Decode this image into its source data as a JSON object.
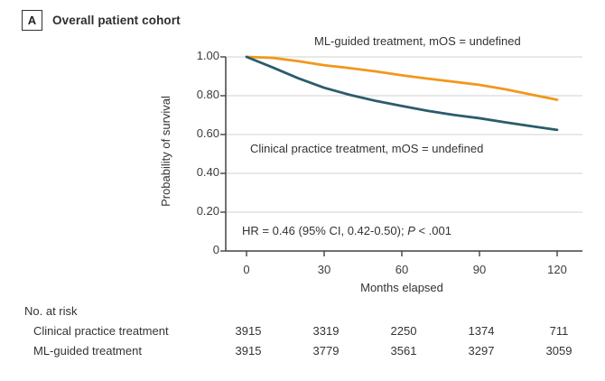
{
  "panel": {
    "label": "A",
    "title": "Overall patient cohort"
  },
  "chart_data": {
    "type": "line",
    "title": "Overall patient cohort",
    "xlabel": "Months elapsed",
    "ylabel": "Probability of survival",
    "xlim": [
      0,
      120
    ],
    "ylim": [
      0,
      1.0
    ],
    "grid": "horizontal",
    "legend_position": "labels-on-plot",
    "x_ticks": [
      {
        "label": "0",
        "value": 0
      },
      {
        "label": "30",
        "value": 30
      },
      {
        "label": "60",
        "value": 60
      },
      {
        "label": "90",
        "value": 90
      },
      {
        "label": "120",
        "value": 120
      }
    ],
    "y_ticks": [
      {
        "label": "1.00",
        "value": 1.0
      },
      {
        "label": "0.80",
        "value": 0.8
      },
      {
        "label": "0.60",
        "value": 0.6
      },
      {
        "label": "0.40",
        "value": 0.4
      },
      {
        "label": "0.20",
        "value": 0.2
      },
      {
        "label": "0",
        "value": 0
      }
    ],
    "x": [
      0,
      10,
      20,
      30,
      40,
      50,
      60,
      70,
      80,
      90,
      100,
      110,
      120
    ],
    "series": [
      {
        "name": "ML-guided treatment",
        "label": "ML-guided treatment, mOS = undefined",
        "color": "#F0981E",
        "values": [
          1.0,
          0.995,
          0.978,
          0.957,
          0.942,
          0.925,
          0.905,
          0.888,
          0.872,
          0.856,
          0.833,
          0.806,
          0.779
        ]
      },
      {
        "name": "Clinical practice treatment",
        "label": "Clinical practice treatment, mOS = undefined",
        "color": "#2B5C6B",
        "values": [
          1.0,
          0.946,
          0.89,
          0.841,
          0.804,
          0.773,
          0.747,
          0.722,
          0.701,
          0.684,
          0.663,
          0.643,
          0.624
        ]
      }
    ],
    "annotation": {
      "prefix": "HR = 0.46 (95% CI, 0.42-0.50); ",
      "italic": "P",
      "suffix": " < .001"
    }
  },
  "at_risk": {
    "header": "No. at risk",
    "rows": [
      {
        "label": "Clinical practice treatment",
        "counts": [
          3915,
          3319,
          2250,
          1374,
          711
        ]
      },
      {
        "label": "ML-guided treatment",
        "counts": [
          3915,
          3779,
          3561,
          3297,
          3059
        ]
      }
    ]
  },
  "colors": {
    "ml_line": "#F0981E",
    "clinical_line": "#2B5C6B",
    "axis": "#3f4447",
    "grid": "#d9d9d9",
    "text": "#333333",
    "background": "#ffffff"
  }
}
